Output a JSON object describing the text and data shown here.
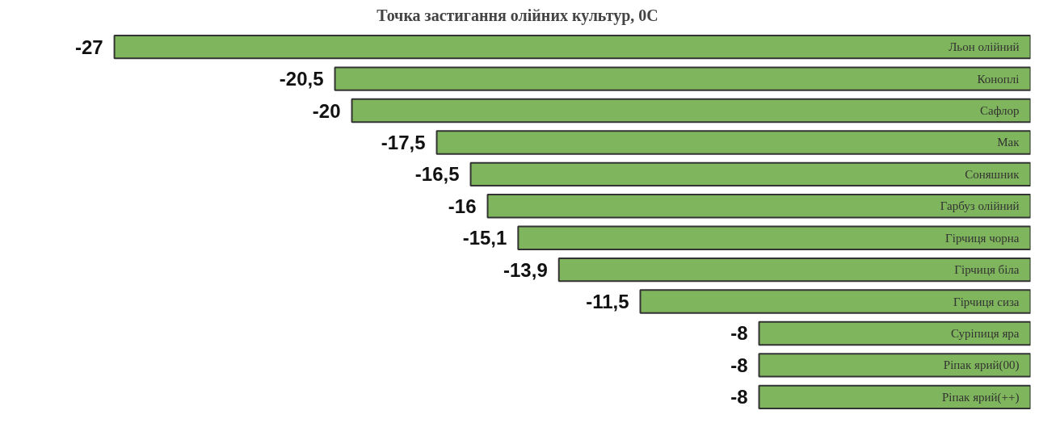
{
  "chart_data": {
    "type": "bar",
    "orientation": "horizontal",
    "title": "Точка застигання олійних культур, 0С",
    "categories": [
      "Льон олійний",
      "Коноплі",
      "Сафлор",
      "Мак",
      "Соняшник",
      "Гарбуз олійний",
      "Гірчиця чорна",
      "Гірчиця біла",
      "Гірчиця сиза",
      "Суріпиця яра",
      "Ріпак ярий(00)",
      "Ріпак ярий(++)"
    ],
    "values": [
      -27,
      -20.5,
      -20,
      -17.5,
      -16.5,
      -16,
      -15.1,
      -13.9,
      -11.5,
      -8,
      -8,
      -8
    ],
    "value_labels": [
      "-27",
      "-20,5",
      "-20",
      "-17,5",
      "-16,5",
      "-16",
      "-15,1",
      "-13,9",
      "-11,5",
      "-8",
      "-8",
      "-8"
    ],
    "color": "#7fb55c",
    "tick_labels": false
  }
}
